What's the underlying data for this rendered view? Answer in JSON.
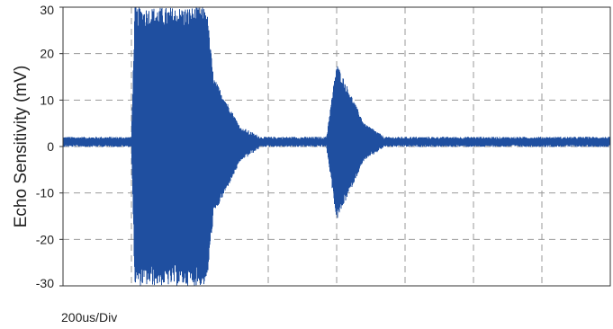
{
  "chart_data": {
    "type": "line",
    "title": "",
    "ylabel": "Echo Sensitivity (mV)",
    "xlabel": "200us/Div",
    "ylim": [
      -30,
      30
    ],
    "yticks": [
      30,
      20,
      10,
      0,
      -10,
      -20,
      -30
    ],
    "x_divisions": 8,
    "grid": true,
    "series_color": "#1f4fa0",
    "baseline_mV": 1,
    "series": [
      {
        "description_points": [
          {
            "x_div": 0.0,
            "y_max": 2,
            "y_min": 0
          },
          {
            "x_div": 1.0,
            "y_max": 2,
            "y_min": 0
          },
          {
            "x_div": 1.05,
            "y_max": 30,
            "y_min": -30
          },
          {
            "x_div": 2.1,
            "y_max": 30,
            "y_min": -30
          },
          {
            "x_div": 2.2,
            "y_max": 15,
            "y_min": -15
          },
          {
            "x_div": 2.6,
            "y_max": 4,
            "y_min": -3
          },
          {
            "x_div": 2.9,
            "y_max": 2,
            "y_min": 0
          },
          {
            "x_div": 3.85,
            "y_max": 2,
            "y_min": 0
          },
          {
            "x_div": 4.0,
            "y_max": 18,
            "y_min": -16
          },
          {
            "x_div": 4.4,
            "y_max": 5,
            "y_min": -3
          },
          {
            "x_div": 4.7,
            "y_max": 2,
            "y_min": 0
          },
          {
            "x_div": 8.0,
            "y_max": 2,
            "y_min": 0
          }
        ]
      }
    ]
  }
}
